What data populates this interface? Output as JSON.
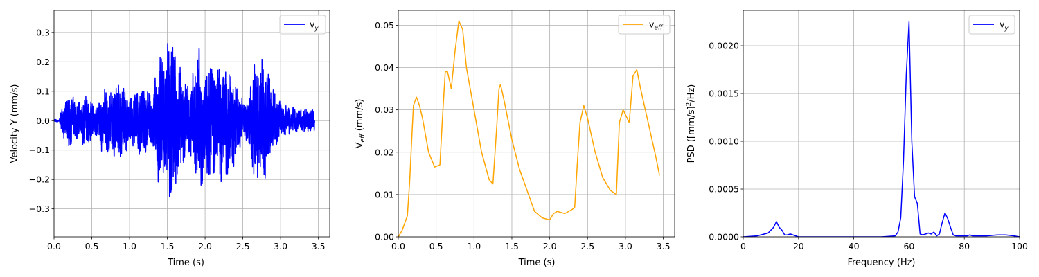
{
  "chart_data": [
    {
      "type": "line",
      "xlabel": "Time (s)",
      "ylabel": "Velocity Y (mm/s)",
      "xlim": [
        0,
        3.65
      ],
      "ylim": [
        -0.395,
        0.375
      ],
      "xticks": [
        "0.0",
        "0.5",
        "1.0",
        "1.5",
        "2.0",
        "2.5",
        "3.0",
        "3.5"
      ],
      "yticks": [
        "−0.3",
        "−0.2",
        "−0.1",
        "0.0",
        "0.1",
        "0.2",
        "0.3"
      ],
      "grid": true,
      "legend_position": "top-right",
      "series": [
        {
          "name": "v_y",
          "color": "#0000ff",
          "signal": "oscillating velocity, 60 Hz dominant",
          "envelope": {
            "t": [
              0,
              0.07,
              0.1,
              0.2,
              0.3,
              0.45,
              0.55,
              0.65,
              0.75,
              0.9,
              1.0,
              1.15,
              1.3,
              1.4,
              1.5,
              1.55,
              1.65,
              1.8,
              1.9,
              2.0,
              2.15,
              2.3,
              2.45,
              2.55,
              2.65,
              2.75,
              2.85,
              2.95,
              3.05,
              3.15,
              3.25,
              3.35,
              3.45
            ],
            "amp": [
              0.005,
              0.005,
              0.045,
              0.1,
              0.07,
              0.1,
              0.05,
              0.12,
              0.12,
              0.15,
              0.08,
              0.14,
              0.1,
              0.24,
              0.28,
              0.33,
              0.22,
              0.12,
              0.26,
              0.24,
              0.2,
              0.22,
              0.1,
              0.07,
              0.22,
              0.24,
              0.17,
              0.1,
              0.06,
              0.05,
              0.045,
              0.045,
              0.04
            ]
          }
        }
      ]
    },
    {
      "type": "line",
      "xlabel": "Time (s)",
      "ylabel": "V_eff (mm/s)",
      "xlim": [
        0,
        3.65
      ],
      "ylim": [
        0,
        0.0535
      ],
      "xticks": [
        "0.0",
        "0.5",
        "1.0",
        "1.5",
        "2.0",
        "2.5",
        "3.0",
        "3.5"
      ],
      "yticks": [
        "0.00",
        "0.01",
        "0.02",
        "0.03",
        "0.04",
        "0.05"
      ],
      "grid": true,
      "legend_position": "top-right",
      "series": [
        {
          "name": "v_eff",
          "color": "#ffa500",
          "x": [
            0,
            0.05,
            0.12,
            0.15,
            0.18,
            0.2,
            0.24,
            0.28,
            0.32,
            0.4,
            0.48,
            0.55,
            0.58,
            0.62,
            0.65,
            0.7,
            0.75,
            0.8,
            0.85,
            0.9,
            1.0,
            1.1,
            1.2,
            1.25,
            1.3,
            1.33,
            1.35,
            1.4,
            1.5,
            1.6,
            1.7,
            1.8,
            1.9,
            2.0,
            2.05,
            2.1,
            2.2,
            2.3,
            2.33,
            2.37,
            2.4,
            2.45,
            2.5,
            2.6,
            2.7,
            2.8,
            2.88,
            2.92,
            2.97,
            3.05,
            3.1,
            3.15,
            3.2,
            3.3,
            3.4,
            3.45
          ],
          "y": [
            0.0,
            0.0015,
            0.005,
            0.013,
            0.024,
            0.031,
            0.033,
            0.031,
            0.028,
            0.02,
            0.0165,
            0.017,
            0.027,
            0.039,
            0.039,
            0.035,
            0.044,
            0.051,
            0.049,
            0.04,
            0.03,
            0.02,
            0.0135,
            0.0125,
            0.026,
            0.035,
            0.036,
            0.032,
            0.023,
            0.016,
            0.011,
            0.006,
            0.0045,
            0.004,
            0.0055,
            0.006,
            0.0055,
            0.0065,
            0.007,
            0.019,
            0.027,
            0.031,
            0.028,
            0.02,
            0.014,
            0.011,
            0.01,
            0.027,
            0.03,
            0.027,
            0.038,
            0.0395,
            0.035,
            0.027,
            0.019,
            0.0145
          ]
        }
      ]
    },
    {
      "type": "line",
      "xlabel": "Frequency (Hz)",
      "ylabel": "PSD ([mm/s]²/Hz)",
      "xlim": [
        0,
        100
      ],
      "ylim": [
        0,
        0.00237
      ],
      "xticks": [
        "0",
        "20",
        "40",
        "60",
        "80",
        "100"
      ],
      "yticks": [
        "0.0000",
        "0.0005",
        "0.0010",
        "0.0015",
        "0.0020"
      ],
      "grid": true,
      "legend_position": "top-right",
      "series": [
        {
          "name": "v_y",
          "color": "#0000ff",
          "x": [
            0,
            5,
            9,
            11,
            12,
            13,
            14,
            15,
            16,
            17,
            18,
            19,
            20,
            30,
            40,
            50,
            55,
            56,
            57,
            58,
            59,
            60,
            61,
            62,
            63,
            64,
            65,
            66,
            67,
            68,
            69,
            70,
            71,
            72,
            73,
            74,
            75,
            76,
            77,
            78,
            80,
            81,
            82,
            83,
            85,
            88,
            92,
            95,
            98,
            100
          ],
          "y": [
            0.0,
            1e-05,
            4e-05,
            0.0001,
            0.00016,
            0.0001,
            7e-05,
            2e-05,
            2e-05,
            3e-05,
            2e-05,
            1e-05,
            0.0,
            0.0,
            0.0,
            0.0,
            1e-05,
            5e-05,
            0.0002,
            0.0008,
            0.0017,
            0.00225,
            0.001,
            0.00042,
            0.00035,
            3e-05,
            2e-05,
            3e-05,
            4e-05,
            3e-05,
            5e-05,
            1e-05,
            3e-05,
            0.00015,
            0.00025,
            0.00019,
            0.0001,
            2e-05,
            1e-05,
            1e-05,
            1e-05,
            1e-05,
            2e-05,
            1e-05,
            1e-05,
            1e-05,
            2e-05,
            2e-05,
            1e-05,
            0.0
          ]
        }
      ]
    }
  ]
}
